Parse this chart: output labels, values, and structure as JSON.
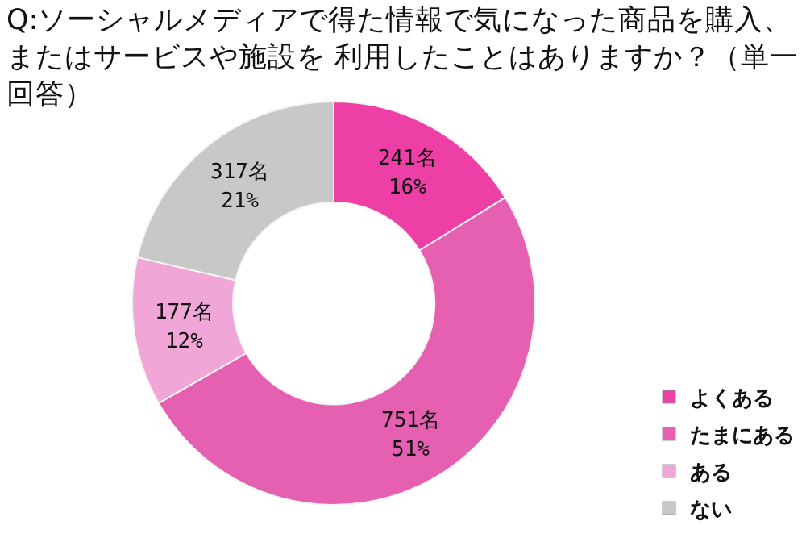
{
  "chart_data": {
    "type": "donut",
    "title": "Q:ソーシャルメディアで得た情報で気になった商品を購入、またはサービスや施設を 利用したことはありますか？（単一回答）",
    "categories": [
      "よくある",
      "たまにある",
      "ある",
      "ない"
    ],
    "values": [
      241,
      751,
      177,
      317
    ],
    "value_labels": [
      "241名 16%",
      "751名 51%",
      "177名 12%",
      "317名 21%"
    ],
    "colors": [
      "#ee3fa6",
      "#e660b2",
      "#f0a6d6",
      "#c8c8c8"
    ],
    "legend": "bottom right"
  }
}
